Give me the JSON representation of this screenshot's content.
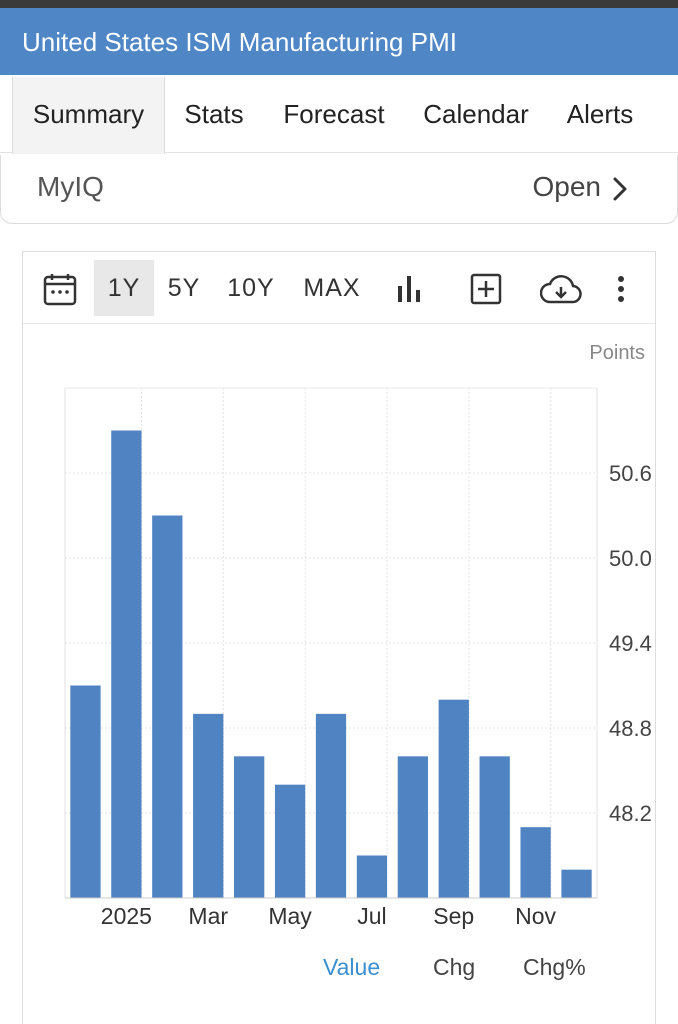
{
  "header": {
    "title": "United States ISM Manufacturing PMI"
  },
  "tabs": [
    {
      "label": "Summary",
      "active": true
    },
    {
      "label": "Stats"
    },
    {
      "label": "Forecast"
    },
    {
      "label": "Calendar"
    },
    {
      "label": "Alerts"
    }
  ],
  "myiq": {
    "label": "MyIQ",
    "action": "Open"
  },
  "toolbar": {
    "ranges": [
      "1Y",
      "5Y",
      "10Y",
      "MAX"
    ],
    "active_range": "1Y",
    "icons": [
      "calendar-icon",
      "bar-chart-icon",
      "add-box-icon",
      "cloud-download-icon",
      "more-vertical-icon"
    ]
  },
  "chart_data": {
    "type": "bar",
    "units_label": "Points",
    "color": "#5083c1",
    "categories": [
      "Dec 2024",
      "Jan 2025",
      "Feb 2025",
      "Mar 2025",
      "Apr 2025",
      "May 2025",
      "Jun 2025",
      "Jul 2025",
      "Aug 2025",
      "Sep 2025",
      "Oct 2025",
      "Nov 2025",
      "Dec 2025"
    ],
    "values": [
      49.1,
      50.9,
      50.3,
      48.9,
      48.6,
      48.4,
      48.9,
      47.9,
      48.6,
      49.0,
      48.6,
      48.1,
      47.8
    ],
    "x_tick_labels": [
      "2025",
      "Mar",
      "May",
      "Jul",
      "Sep",
      "Nov"
    ],
    "y_ticks": [
      48.2,
      48.8,
      49.4,
      50.0,
      50.6
    ],
    "ylim": [
      47.6,
      51.2
    ],
    "grid": true,
    "y_axis_position": "right"
  },
  "legend": {
    "items": [
      "Value",
      "Chg",
      "Chg%"
    ],
    "active": "Value"
  }
}
